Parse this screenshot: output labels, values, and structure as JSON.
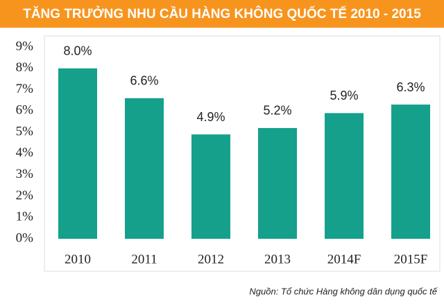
{
  "chart_data": {
    "type": "bar",
    "title": "TĂNG TRƯỞNG NHU CẦU HÀNG KHÔNG QUỐC TẾ 2010 - 2015",
    "categories": [
      "2010",
      "2011",
      "2012",
      "2013",
      "2014F",
      "2015F"
    ],
    "values": [
      8.0,
      6.6,
      4.9,
      5.2,
      5.9,
      6.3
    ],
    "value_labels": [
      "8.0%",
      "6.6%",
      "4.9%",
      "5.2%",
      "5.9%",
      "6.3%"
    ],
    "color": "#15a08b",
    "ylim": [
      0,
      9
    ],
    "yticks": [
      {
        "value": 0,
        "label": "0%"
      },
      {
        "value": 1,
        "label": "1%"
      },
      {
        "value": 2,
        "label": "2%"
      },
      {
        "value": 3,
        "label": "3%"
      },
      {
        "value": 4,
        "label": "4%"
      },
      {
        "value": 5,
        "label": "5%"
      },
      {
        "value": 6,
        "label": "6%"
      },
      {
        "value": 7,
        "label": "7%"
      },
      {
        "value": 8,
        "label": "8%"
      },
      {
        "value": 9,
        "label": "9%"
      }
    ],
    "source": "Nguồn: Tổ chức Hàng không dân dụng quốc tế"
  }
}
